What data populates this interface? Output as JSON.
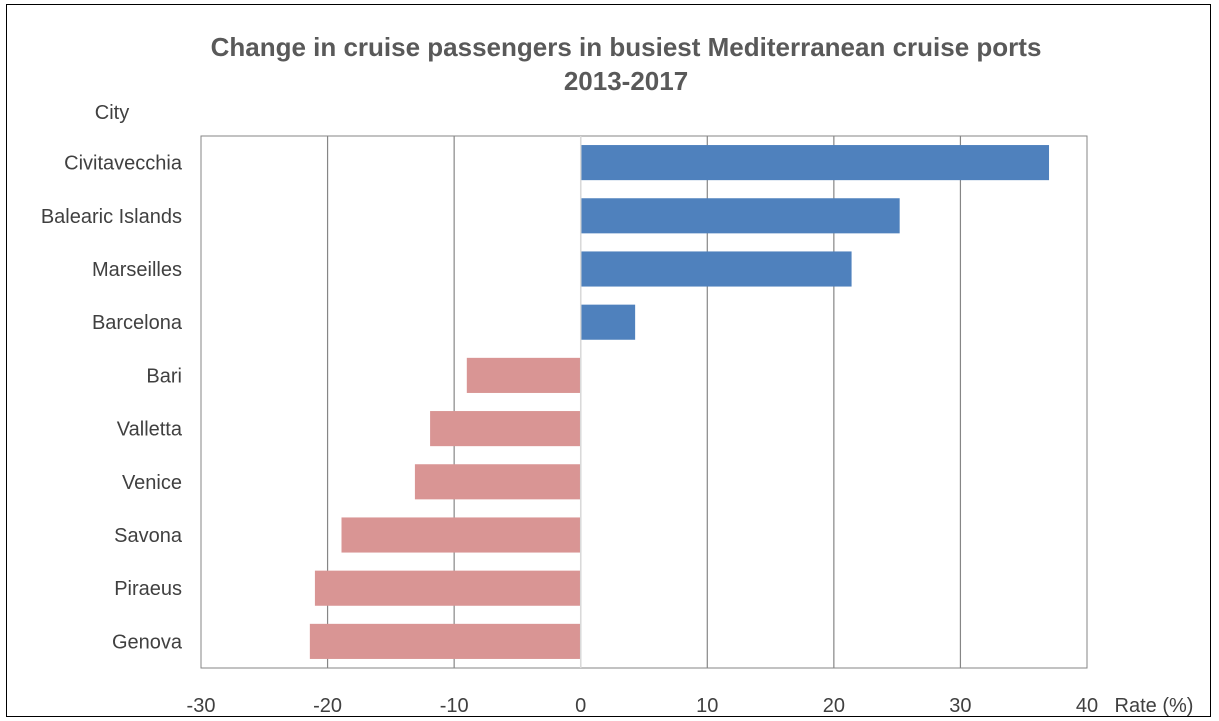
{
  "chart_data": {
    "type": "bar",
    "orientation": "horizontal",
    "title": "Change in cruise passengers in busiest Mediterranean cruise ports",
    "subtitle": "2013-2017",
    "ylabel": "City",
    "xlabel": "Rate (%)",
    "xlim": [
      -30,
      40
    ],
    "x_ticks": [
      -30,
      -20,
      -10,
      0,
      10,
      20,
      30,
      40
    ],
    "grid": "vertical",
    "categories": [
      "Civitavecchia",
      "Balearic Islands",
      "Marseilles",
      "Barcelona",
      "Bari",
      "Valletta",
      "Venice",
      "Savona",
      "Piraeus",
      "Genova"
    ],
    "values": [
      37.0,
      25.2,
      21.4,
      4.3,
      -9.0,
      -11.9,
      -13.1,
      -18.9,
      -21.0,
      -21.4
    ],
    "colors": {
      "positive": "#4f81bd",
      "negative": "#d99594",
      "grid": "#868686",
      "axis_text": "#404040",
      "title": "#595959"
    }
  }
}
